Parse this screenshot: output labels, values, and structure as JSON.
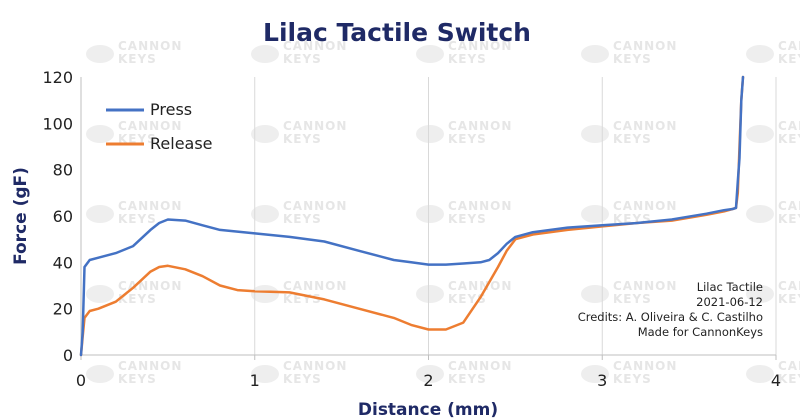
{
  "chart_data": {
    "type": "line",
    "title": "Lilac Tactile Switch",
    "xlabel": "Distance (mm)",
    "ylabel": "Force (gF)",
    "xlim": [
      0,
      4
    ],
    "ylim": [
      0,
      120
    ],
    "xticks": [
      0,
      1,
      2,
      3,
      4
    ],
    "yticks": [
      0,
      20,
      40,
      60,
      80,
      100,
      120
    ],
    "grid": "vertical",
    "legend": "top-left",
    "series": [
      {
        "name": "Press",
        "color": "#4472c4",
        "x": [
          0,
          0.01,
          0.02,
          0.05,
          0.1,
          0.2,
          0.3,
          0.4,
          0.45,
          0.5,
          0.6,
          0.7,
          0.8,
          1.0,
          1.2,
          1.4,
          1.6,
          1.8,
          1.9,
          2.0,
          2.1,
          2.2,
          2.3,
          2.35,
          2.4,
          2.45,
          2.5,
          2.6,
          2.8,
          3.0,
          3.2,
          3.4,
          3.6,
          3.7,
          3.75,
          3.77,
          3.78,
          3.79,
          3.8,
          3.81
        ],
        "y": [
          0,
          10,
          38,
          41,
          42,
          44,
          47,
          54,
          57,
          58.5,
          58,
          56,
          54,
          52.5,
          51,
          49,
          45,
          41,
          40,
          39,
          39,
          39.5,
          40,
          41,
          44,
          48,
          51,
          53,
          55,
          56,
          57,
          58.5,
          61,
          62.5,
          63,
          63.5,
          75,
          85,
          110,
          120
        ]
      },
      {
        "name": "Release",
        "color": "#ed7d31",
        "x": [
          0,
          0.01,
          0.02,
          0.05,
          0.1,
          0.2,
          0.3,
          0.4,
          0.45,
          0.5,
          0.6,
          0.7,
          0.8,
          0.9,
          1.0,
          1.2,
          1.4,
          1.6,
          1.8,
          1.9,
          2.0,
          2.1,
          2.2,
          2.3,
          2.4,
          2.45,
          2.5,
          2.6,
          2.8,
          3.0,
          3.2,
          3.4,
          3.6,
          3.7,
          3.75,
          3.77,
          3.78,
          3.79,
          3.8,
          3.81
        ],
        "y": [
          0,
          8,
          16,
          19,
          20,
          23,
          29,
          36,
          38,
          38.5,
          37,
          34,
          30,
          28,
          27.5,
          27,
          24,
          20,
          16,
          13,
          11,
          11,
          14,
          25,
          38,
          45,
          50,
          52,
          54,
          55.5,
          57,
          58,
          60.5,
          62,
          63,
          63.5,
          70,
          90,
          110,
          120
        ]
      }
    ],
    "annotation": [
      "Lilac Tactile",
      "2021-06-12",
      "Credits: A. Oliveira & C. Castilho",
      "Made for CannonKeys"
    ]
  },
  "watermark": [
    "CANNON",
    "KEYS"
  ]
}
